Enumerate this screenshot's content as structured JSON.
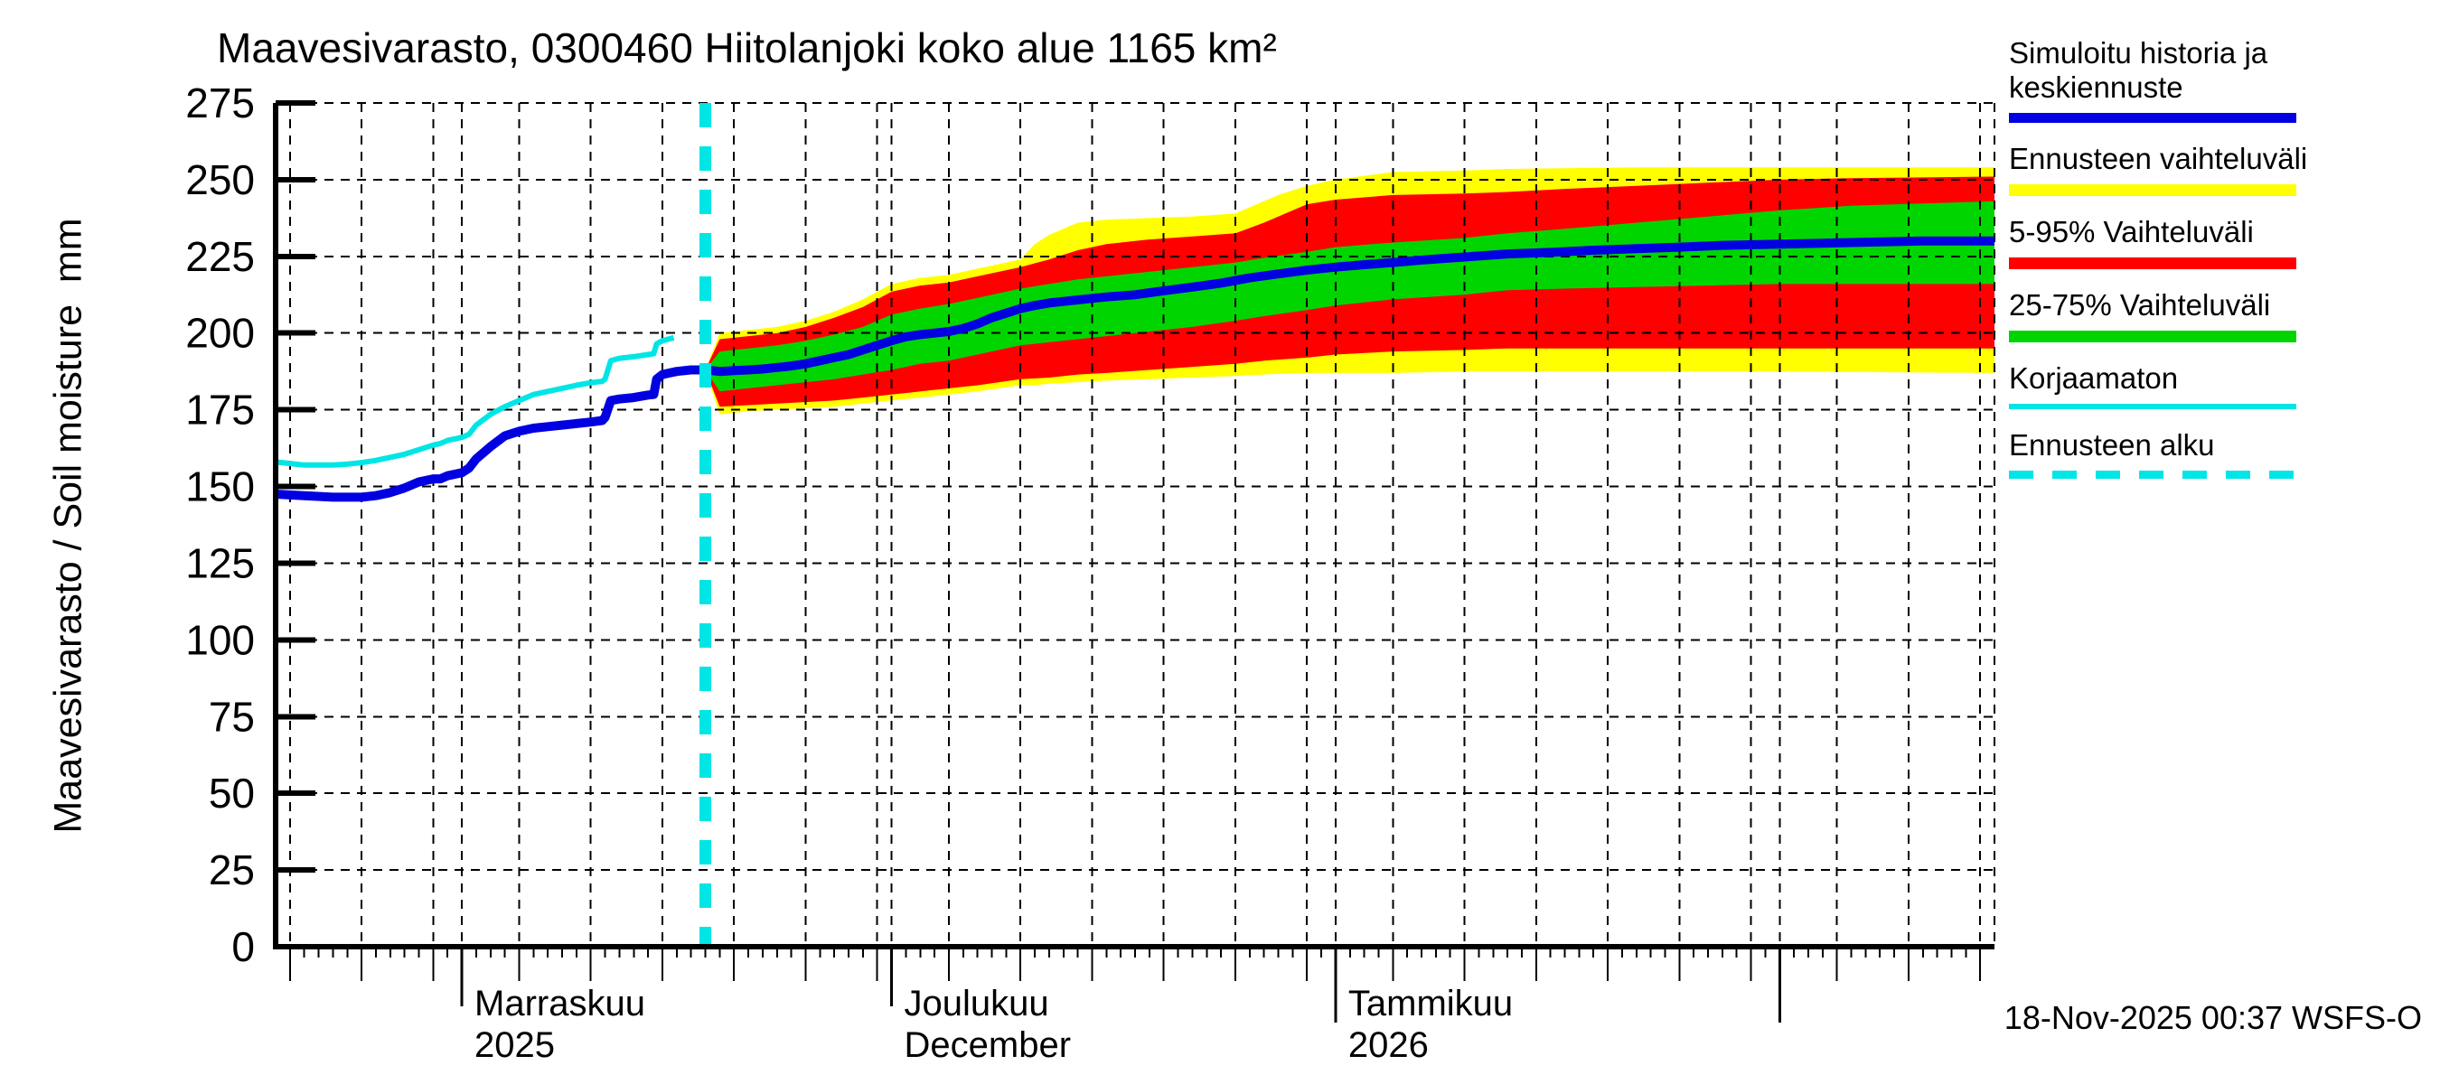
{
  "title": "Maavesivarasto, 0300460 Hiitolanjoki koko alue 1165 km²",
  "y_axis_label": "Maavesivarasto / Soil moisture  mm",
  "timestamp": "18-Nov-2025 00:37 WSFS-O",
  "legend": {
    "items": [
      {
        "label": "Simuloitu historia ja",
        "label2": "keskiennuste",
        "color": "#0000e1",
        "style": "solid",
        "thickness": 11
      },
      {
        "label": "Ennusteen vaihteluväli",
        "color": "#ffff00",
        "style": "solid",
        "thickness": 13
      },
      {
        "label": "5-95% Vaihteluväli",
        "color": "#fe0000",
        "style": "solid",
        "thickness": 13
      },
      {
        "label": "25-75% Vaihteluväli",
        "color": "#00d500",
        "style": "solid",
        "thickness": 13
      },
      {
        "label": "Korjaamaton",
        "color": "#00e5e5",
        "style": "solid",
        "thickness": 6
      },
      {
        "label": "Ennusteen alku",
        "color": "#00e5e5",
        "style": "dashed",
        "thickness": 9
      }
    ]
  },
  "chart_data": {
    "type": "line",
    "title": "Maavesivarasto, 0300460 Hiitolanjoki koko alue 1165 km²",
    "ylabel": "Maavesivarasto / Soil moisture  mm",
    "ylim": [
      0,
      275
    ],
    "ytick_step": 25,
    "ytick_labels": [
      "0",
      "25",
      "50",
      "75",
      "100",
      "125",
      "150",
      "175",
      "200",
      "225",
      "250",
      "275"
    ],
    "x_start_date": "19-Oct-2025",
    "x_end_date": "16-Feb-2026",
    "xlim_days": [
      0,
      120
    ],
    "forecast_start_day": 30,
    "forecast_start_date": "18-Nov-2025",
    "grid": true,
    "legend_position": "right",
    "months": [
      {
        "day": 13,
        "line1": "Marraskuu",
        "line2": "2025"
      },
      {
        "day": 43,
        "line1": "Joulukuu",
        "line2": "December"
      },
      {
        "day": 74,
        "line1": "Tammikuu",
        "line2": "2026"
      }
    ],
    "x_gridline_days": [
      1,
      6,
      11,
      13,
      17,
      22,
      27,
      32,
      37,
      42,
      43,
      47,
      52,
      57,
      62,
      67,
      72,
      74,
      78,
      83,
      88,
      93,
      98,
      103,
      105,
      109,
      114,
      119,
      120
    ],
    "medium_tick_days": [
      1,
      6,
      11,
      17,
      22,
      27,
      32,
      37,
      42,
      47,
      52,
      57,
      62,
      67,
      72,
      78,
      83,
      88,
      93,
      98,
      103,
      109,
      114,
      119
    ],
    "month_tick_days": [
      13,
      43
    ],
    "year_tick_days": [
      74,
      105
    ],
    "colors": {
      "mean": "#0000e1",
      "uncorrected": "#00e5e5",
      "forecast_range": "#ffff00",
      "range_5_95": "#fe0000",
      "range_25_75": "#00d500",
      "forecast_start_marker": "#00e5e5",
      "grid": "#000000"
    },
    "series": {
      "history_mean": [
        [
          0,
          147.5
        ],
        [
          2,
          147
        ],
        [
          4,
          146.5
        ],
        [
          6,
          146.5
        ],
        [
          7,
          147
        ],
        [
          8,
          148
        ],
        [
          9,
          149.5
        ],
        [
          10,
          151.5
        ],
        [
          11,
          152.5
        ],
        [
          11.5,
          152.5
        ],
        [
          12,
          153.5
        ],
        [
          13,
          154.5
        ],
        [
          13.5,
          156
        ],
        [
          14,
          159
        ],
        [
          15,
          163
        ],
        [
          16,
          166.5
        ],
        [
          17,
          168
        ],
        [
          18,
          169
        ],
        [
          19,
          169.5
        ],
        [
          20,
          170
        ],
        [
          21,
          170.5
        ],
        [
          22,
          171
        ],
        [
          22.8,
          171.5
        ],
        [
          23,
          172.5
        ],
        [
          23.4,
          178
        ],
        [
          24,
          178.5
        ],
        [
          25,
          179
        ],
        [
          26,
          179.8
        ],
        [
          26.4,
          180
        ],
        [
          26.6,
          185
        ],
        [
          27,
          186.5
        ],
        [
          27.5,
          187
        ],
        [
          28,
          187.5
        ],
        [
          29,
          188
        ],
        [
          30,
          188
        ]
      ],
      "uncorrected": [
        [
          0,
          158
        ],
        [
          1,
          157.5
        ],
        [
          2,
          157
        ],
        [
          3,
          157
        ],
        [
          4,
          157
        ],
        [
          5,
          157.3
        ],
        [
          6,
          157.8
        ],
        [
          7,
          158.5
        ],
        [
          8,
          159.5
        ],
        [
          9,
          160.5
        ],
        [
          10,
          162
        ],
        [
          11,
          163.5
        ],
        [
          11.5,
          164
        ],
        [
          12,
          165
        ],
        [
          13,
          166
        ],
        [
          13.5,
          167
        ],
        [
          14,
          170
        ],
        [
          15,
          173.5
        ],
        [
          16,
          176
        ],
        [
          17,
          178
        ],
        [
          18,
          180
        ],
        [
          19,
          181
        ],
        [
          20,
          182
        ],
        [
          21,
          183
        ],
        [
          22,
          183.8
        ],
        [
          22.8,
          184.3
        ],
        [
          23,
          185
        ],
        [
          23.4,
          191
        ],
        [
          24,
          191.8
        ],
        [
          25,
          192.3
        ],
        [
          26,
          193
        ],
        [
          26.4,
          193.3
        ],
        [
          26.6,
          196.5
        ],
        [
          27,
          197.5
        ],
        [
          27.8,
          198.5
        ]
      ],
      "forecast_mean": [
        [
          30,
          188
        ],
        [
          31,
          187.5
        ],
        [
          32,
          187.8
        ],
        [
          33,
          188
        ],
        [
          34,
          188.3
        ],
        [
          35,
          188.8
        ],
        [
          36,
          189.3
        ],
        [
          37,
          190
        ],
        [
          38,
          191
        ],
        [
          39,
          192
        ],
        [
          40,
          193
        ],
        [
          41,
          194.5
        ],
        [
          42,
          196
        ],
        [
          43,
          197.5
        ],
        [
          44,
          198.8
        ],
        [
          45,
          199.5
        ],
        [
          46,
          200
        ],
        [
          47,
          200.5
        ],
        [
          48,
          201.5
        ],
        [
          49,
          203
        ],
        [
          50,
          205
        ],
        [
          51,
          206.5
        ],
        [
          52,
          208
        ],
        [
          53,
          209
        ],
        [
          54,
          209.8
        ],
        [
          55,
          210.3
        ],
        [
          56,
          210.8
        ],
        [
          57,
          211.3
        ],
        [
          58,
          211.8
        ],
        [
          60,
          212.5
        ],
        [
          62,
          213.8
        ],
        [
          64,
          215
        ],
        [
          66,
          216.3
        ],
        [
          68,
          218
        ],
        [
          70,
          219.3
        ],
        [
          72,
          220.5
        ],
        [
          74,
          221.5
        ],
        [
          76,
          222.3
        ],
        [
          78,
          223
        ],
        [
          80,
          223.8
        ],
        [
          83,
          224.8
        ],
        [
          86,
          225.8
        ],
        [
          89,
          226.3
        ],
        [
          92,
          227
        ],
        [
          95,
          227.5
        ],
        [
          98,
          228
        ],
        [
          101,
          228.6
        ],
        [
          105,
          229
        ],
        [
          110,
          229.5
        ],
        [
          115,
          230
        ],
        [
          120,
          230
        ]
      ]
    },
    "bands": {
      "forecast_range": [
        [
          30,
          188,
          188
        ],
        [
          31,
          173.5,
          200
        ],
        [
          33,
          174.5,
          201
        ],
        [
          35,
          175,
          202
        ],
        [
          37,
          175.5,
          204
        ],
        [
          39,
          176,
          207
        ],
        [
          41,
          177,
          211
        ],
        [
          43,
          178,
          216
        ],
        [
          45,
          179,
          218
        ],
        [
          47,
          180,
          219
        ],
        [
          49,
          181,
          221
        ],
        [
          52,
          183,
          224
        ],
        [
          53,
          183,
          229
        ],
        [
          54,
          183.5,
          232
        ],
        [
          56,
          184,
          236
        ],
        [
          58,
          184.5,
          237
        ],
        [
          61,
          185,
          237.5
        ],
        [
          64,
          185.5,
          238
        ],
        [
          67,
          186,
          239
        ],
        [
          68,
          186.3,
          241
        ],
        [
          70,
          186.7,
          245
        ],
        [
          72,
          187,
          248
        ],
        [
          74,
          187,
          250
        ],
        [
          78,
          187,
          252.5
        ],
        [
          83,
          187.5,
          253
        ],
        [
          86,
          187.5,
          253.5
        ],
        [
          95,
          187.5,
          254
        ],
        [
          105,
          187.5,
          254
        ],
        [
          120,
          187,
          254
        ]
      ],
      "range_5_95": [
        [
          30,
          188,
          188
        ],
        [
          31,
          176,
          198
        ],
        [
          33,
          176.5,
          199
        ],
        [
          35,
          177,
          200
        ],
        [
          37,
          177.5,
          202
        ],
        [
          39,
          178,
          205
        ],
        [
          41,
          179,
          208.5
        ],
        [
          43,
          180,
          213.5
        ],
        [
          45,
          181,
          215.5
        ],
        [
          47,
          182,
          216.5
        ],
        [
          49,
          183,
          218.5
        ],
        [
          52,
          185,
          221.5
        ],
        [
          54,
          185.5,
          224
        ],
        [
          56,
          186.5,
          227
        ],
        [
          58,
          187,
          229
        ],
        [
          61,
          188,
          230.5
        ],
        [
          64,
          189,
          231.5
        ],
        [
          67,
          190,
          232.5
        ],
        [
          69,
          191,
          236
        ],
        [
          72,
          192,
          242
        ],
        [
          74,
          193,
          243.5
        ],
        [
          78,
          194,
          245
        ],
        [
          83,
          194.5,
          245.5
        ],
        [
          86,
          195,
          246
        ],
        [
          90,
          195,
          247
        ],
        [
          95,
          195,
          248
        ],
        [
          100,
          195,
          249
        ],
        [
          105,
          195,
          250
        ],
        [
          110,
          195,
          250.5
        ],
        [
          120,
          195,
          251
        ]
      ],
      "range_25_75": [
        [
          30,
          188,
          188
        ],
        [
          31,
          181,
          194
        ],
        [
          33,
          182,
          195
        ],
        [
          35,
          183,
          196
        ],
        [
          37,
          184,
          197.5
        ],
        [
          39,
          185,
          199.5
        ],
        [
          41,
          186.5,
          202
        ],
        [
          43,
          188,
          206
        ],
        [
          45,
          190,
          208
        ],
        [
          47,
          191,
          209.5
        ],
        [
          49,
          193,
          211.5
        ],
        [
          52,
          196,
          214.5
        ],
        [
          54,
          197,
          216
        ],
        [
          56,
          198,
          217.5
        ],
        [
          58,
          199,
          218.5
        ],
        [
          61,
          200.5,
          220
        ],
        [
          64,
          202,
          221.5
        ],
        [
          67,
          204,
          223
        ],
        [
          69,
          205.5,
          224.5
        ],
        [
          72,
          207.5,
          226.5
        ],
        [
          74,
          209,
          228
        ],
        [
          78,
          211,
          229.5
        ],
        [
          83,
          212.5,
          231
        ],
        [
          86,
          214,
          232.5
        ],
        [
          90,
          214.5,
          234
        ],
        [
          95,
          215,
          236
        ],
        [
          100,
          215.5,
          238
        ],
        [
          105,
          216,
          240
        ],
        [
          110,
          216,
          241.5
        ],
        [
          120,
          216,
          243
        ]
      ]
    }
  }
}
